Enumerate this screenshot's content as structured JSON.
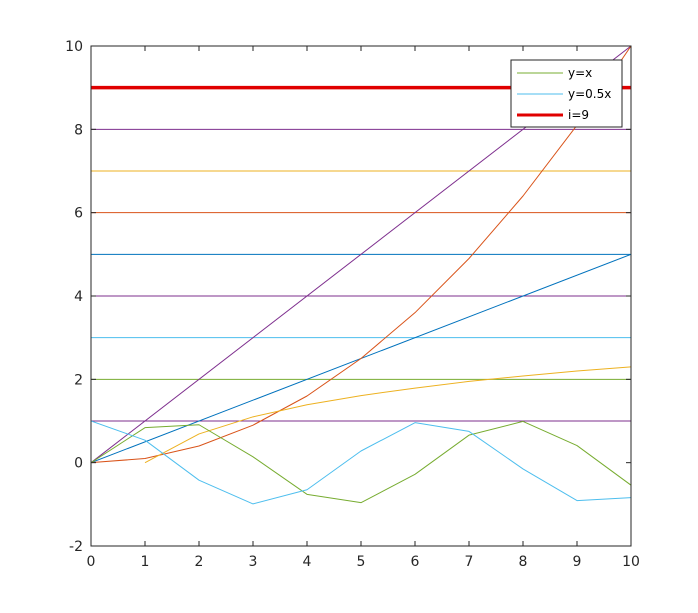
{
  "chart_data": {
    "type": "line",
    "title": "",
    "xlabel": "",
    "ylabel": "",
    "xlim": [
      0,
      10
    ],
    "ylim": [
      -2,
      10
    ],
    "grid": false,
    "legend_position": "top-right",
    "x_ticks": [
      0,
      1,
      2,
      3,
      4,
      5,
      6,
      7,
      8,
      9,
      10
    ],
    "y_ticks": [
      -2,
      0,
      2,
      4,
      6,
      8,
      10
    ],
    "x_tick_labels": [
      "0",
      "1",
      "2",
      "3",
      "4",
      "5",
      "6",
      "7",
      "8",
      "9",
      "10"
    ],
    "y_tick_labels": [
      "-2",
      "0",
      "2",
      "4",
      "6",
      "8",
      "10"
    ],
    "horizontal_lines": [
      {
        "y": 1,
        "color": "#7E2F8E",
        "width": 1
      },
      {
        "y": 2,
        "color": "#77AC30",
        "width": 1
      },
      {
        "y": 3,
        "color": "#4DBEEE",
        "width": 1
      },
      {
        "y": 4,
        "color": "#7E2F8E",
        "width": 1
      },
      {
        "y": 5,
        "color": "#0072BD",
        "width": 1
      },
      {
        "y": 6,
        "color": "#D95319",
        "width": 1
      },
      {
        "y": 7,
        "color": "#EDB120",
        "width": 1
      },
      {
        "y": 8,
        "color": "#7E2F8E",
        "width": 1
      },
      {
        "y": 9,
        "color": "#E00000",
        "width": 3.5
      },
      {
        "y": 10,
        "color": "#4DBEEE",
        "width": 1
      }
    ],
    "series": [
      {
        "color": "#7E2F8E",
        "x": [
          0,
          10
        ],
        "y": [
          0,
          10
        ]
      },
      {
        "color": "#0072BD",
        "x": [
          0,
          10
        ],
        "y": [
          0,
          5
        ]
      },
      {
        "color": "#D95319",
        "x": [
          0,
          1,
          2,
          3,
          4,
          5,
          6,
          7,
          8,
          9,
          10
        ],
        "y": [
          0,
          0.1,
          0.4,
          0.9,
          1.6,
          2.5,
          3.6,
          4.9,
          6.4,
          8.1,
          10
        ]
      },
      {
        "color": "#EDB120",
        "x": [
          1,
          2,
          3,
          4,
          5,
          6,
          7,
          8,
          9,
          10
        ],
        "y": [
          0,
          0.69,
          1.1,
          1.39,
          1.61,
          1.79,
          1.95,
          2.08,
          2.2,
          2.3
        ]
      },
      {
        "color": "#77AC30",
        "x": [
          0,
          1,
          2,
          3,
          4,
          5,
          6,
          7,
          8,
          9,
          10
        ],
        "y": [
          0,
          0.84,
          0.91,
          0.14,
          -0.76,
          -0.96,
          -0.28,
          0.66,
          0.99,
          0.41,
          -0.54
        ]
      },
      {
        "color": "#4DBEEE",
        "x": [
          0,
          1,
          2,
          3,
          4,
          5,
          6,
          7,
          8,
          9,
          10
        ],
        "y": [
          1,
          0.54,
          -0.42,
          -0.99,
          -0.65,
          0.28,
          0.96,
          0.75,
          -0.15,
          -0.91,
          -0.84
        ]
      }
    ],
    "legend": [
      {
        "label": "y=x",
        "color": "#77AC30",
        "width": 1
      },
      {
        "label": "y=0.5x",
        "color": "#4DBEEE",
        "width": 1
      },
      {
        "label": "i=9",
        "color": "#E00000",
        "width": 3
      }
    ]
  }
}
